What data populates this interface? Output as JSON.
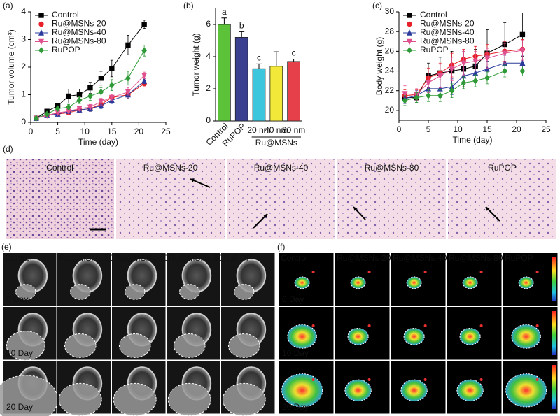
{
  "chart_data": [
    {
      "type": "line",
      "panel_label": "(a)",
      "xlabel": "Time (day)",
      "ylabel": "Tumor volume (cm³)",
      "x": [
        1,
        3,
        5,
        7,
        9,
        11,
        13,
        15,
        18,
        21
      ],
      "xlim": [
        0,
        25
      ],
      "xticks": [
        0,
        5,
        10,
        15,
        20,
        25
      ],
      "ylim": [
        0,
        4
      ],
      "yticks": [
        0,
        1,
        2,
        3,
        4
      ],
      "legend": "upper left",
      "series": [
        {
          "name": "Control",
          "color": "#000000",
          "marker": "square",
          "values": [
            0.15,
            0.4,
            0.6,
            0.95,
            1.0,
            1.25,
            1.6,
            1.95,
            2.8,
            3.55
          ],
          "errors": [
            0.03,
            0.05,
            0.1,
            0.25,
            0.2,
            0.2,
            0.25,
            0.3,
            0.35,
            0.15
          ]
        },
        {
          "name": "Ru@MSNs-20",
          "color": "#e8202a",
          "marker": "circle",
          "values": [
            0.15,
            0.25,
            0.3,
            0.35,
            0.45,
            0.5,
            0.65,
            0.9,
            1.0,
            1.4
          ],
          "errors": [
            0.02,
            0.04,
            0.05,
            0.05,
            0.08,
            0.1,
            0.1,
            0.12,
            0.12,
            0.08
          ]
        },
        {
          "name": "Ru@MSNs-40",
          "color": "#2a3b9c",
          "marker": "triangle",
          "values": [
            0.15,
            0.25,
            0.3,
            0.4,
            0.45,
            0.5,
            0.6,
            0.8,
            1.0,
            1.5
          ],
          "errors": [
            0.02,
            0.04,
            0.05,
            0.05,
            0.08,
            0.1,
            0.1,
            0.12,
            0.15,
            0.1
          ]
        },
        {
          "name": "Ru@MSNs-80",
          "color": "#e0508f",
          "marker": "down-triangle",
          "values": [
            0.15,
            0.25,
            0.35,
            0.4,
            0.5,
            0.55,
            0.75,
            0.9,
            1.1,
            1.7
          ],
          "errors": [
            0.02,
            0.04,
            0.05,
            0.05,
            0.08,
            0.1,
            0.12,
            0.12,
            0.15,
            0.12
          ]
        },
        {
          "name": "RuPOP",
          "color": "#2f9a37",
          "marker": "diamond",
          "values": [
            0.15,
            0.3,
            0.5,
            0.55,
            0.8,
            0.95,
            1.1,
            1.35,
            1.6,
            2.6
          ],
          "errors": [
            0.02,
            0.05,
            0.08,
            0.1,
            0.12,
            0.15,
            0.15,
            0.2,
            0.25,
            0.2
          ]
        }
      ]
    },
    {
      "type": "bar",
      "panel_label": "(b)",
      "ylabel": "Tumor  weight (g)",
      "categories": [
        "Control",
        "RuPOP",
        "20 nm",
        "40 nm",
        "80 nm"
      ],
      "values": [
        6.0,
        5.2,
        3.25,
        3.4,
        3.7
      ],
      "errors": [
        0.4,
        0.35,
        0.3,
        0.9,
        0.15
      ],
      "annotations": [
        "a",
        "b",
        "c",
        null,
        "c"
      ],
      "colors": [
        "#5cc23a",
        "#3a3f8f",
        "#3cc6de",
        "#f2e83a",
        "#e6404a"
      ],
      "groups": [
        {
          "label": "Ru@MSNs",
          "categories": [
            2,
            3,
            4
          ]
        }
      ],
      "ylim": [
        0,
        7
      ],
      "yticks": [
        0,
        2,
        4,
        6
      ]
    },
    {
      "type": "line",
      "panel_label": "(c)",
      "xlabel": "Time (day)",
      "ylabel": "Body  weight (g)",
      "x": [
        1,
        3,
        5,
        7,
        9,
        11,
        13,
        15,
        18,
        21
      ],
      "xlim": [
        0,
        25
      ],
      "xticks": [
        0,
        5,
        10,
        15,
        20,
        25
      ],
      "ylim": [
        19,
        30
      ],
      "yticks": [
        20,
        22,
        24,
        26,
        28,
        30
      ],
      "legend": "upper left",
      "series": [
        {
          "name": "Control",
          "color": "#000000",
          "marker": "square",
          "values": [
            21.3,
            21.3,
            23.5,
            23.8,
            24.0,
            24.2,
            24.5,
            25.8,
            26.7,
            27.7
          ],
          "errors": [
            0.6,
            0.5,
            1.3,
            1.6,
            2.0,
            1.8,
            1.7,
            2.4,
            2.2,
            2.2
          ]
        },
        {
          "name": "Ru@MSNs-20",
          "color": "#e8202a",
          "marker": "circle",
          "values": [
            21.5,
            21.6,
            23.3,
            23.8,
            24.6,
            25.2,
            25.5,
            25.7,
            26.0,
            26.2
          ],
          "errors": [
            0.6,
            0.5,
            1.0,
            1.0,
            1.2,
            1.0,
            1.0,
            1.0,
            1.0,
            1.0
          ]
        },
        {
          "name": "Ru@MSNs-40",
          "color": "#2a3b9c",
          "marker": "triangle",
          "values": [
            21.2,
            21.5,
            22.2,
            22.2,
            22.4,
            23.5,
            23.8,
            24.2,
            24.8,
            24.8
          ],
          "errors": [
            0.5,
            0.5,
            0.8,
            0.9,
            0.8,
            0.8,
            0.8,
            0.8,
            0.8,
            0.8
          ]
        },
        {
          "name": "Ru@MSNs-80",
          "color": "#e0508f",
          "marker": "down-triangle",
          "values": [
            21.7,
            21.6,
            22.8,
            23.5,
            24.2,
            24.8,
            25.0,
            25.3,
            25.8,
            26.1
          ],
          "errors": [
            0.8,
            0.6,
            1.0,
            1.2,
            1.2,
            1.2,
            1.0,
            1.0,
            1.0,
            1.0
          ]
        },
        {
          "name": "RuPOP",
          "color": "#2f9a37",
          "marker": "diamond",
          "values": [
            21.0,
            21.3,
            21.5,
            21.5,
            22.0,
            22.8,
            23.0,
            23.3,
            24.0,
            24.0
          ],
          "errors": [
            0.5,
            0.5,
            0.6,
            0.6,
            0.7,
            0.6,
            0.6,
            0.6,
            0.6,
            0.5
          ]
        }
      ]
    }
  ],
  "histology": {
    "panel_label": "(d)",
    "labels": [
      "Control",
      "Ru@MSNs-20",
      "Ru@MSNs-40",
      "Ru@MSNs-80",
      "RuPOP"
    ]
  },
  "mri": {
    "panel_label": "(e)",
    "columns": [
      "Control",
      "Ru@MSNs-20",
      "Ru@MSNs-40",
      "Ru@MSNs-80",
      "RuPOP"
    ],
    "rows": [
      "0 Day",
      "10 Day",
      "20 Day"
    ]
  },
  "fluorescence": {
    "panel_label": "(f)",
    "columns": [
      "Control",
      "Ru@MSNs-20",
      "Ru@MSNs-40",
      "Ru@MSNs-80",
      "RuPOP"
    ],
    "rows": [
      "0 Day",
      "10 Day",
      "20 Day"
    ]
  }
}
